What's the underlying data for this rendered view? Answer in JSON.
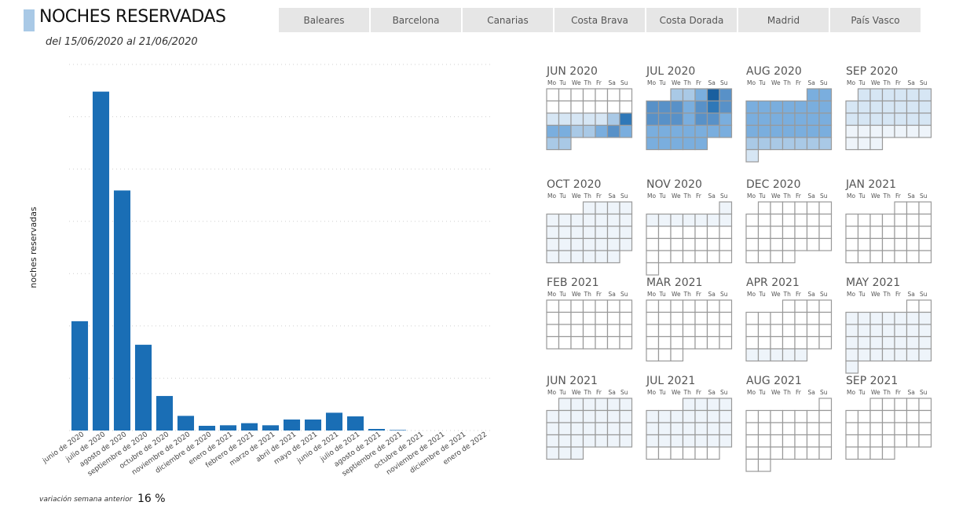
{
  "header": {
    "title": "NOCHES RESERVADAS",
    "subtitle": "del 15/06/2020 al 21/06/2020"
  },
  "tabs": [
    "Baleares",
    "Barcelona",
    "Canarias",
    "Costa Brava",
    "Costa Dorada",
    "Madrid",
    "País Vasco"
  ],
  "colors": {
    "bar": "#1a6eb5",
    "title_accent": "#a9c9e6",
    "tab_bg": "#e6e6e6",
    "cell_border": "#999999",
    "heat_scale": [
      "#ffffff",
      "#eef4fa",
      "#d6e6f4",
      "#a9c9e6",
      "#7aaede",
      "#5891c8",
      "#2f78b8",
      "#1a5f9f"
    ]
  },
  "chart_data": {
    "type": "bar",
    "ylabel": "noches reservadas",
    "categories": [
      "junio de 2020",
      "julio de 2020",
      "agosto de 2020",
      "septiembre de 2020",
      "octubre de 2020",
      "noviembre de 2020",
      "diciembre de 2020",
      "enero de 2021",
      "febrero de 2021",
      "marzo de 2021",
      "abril de 2021",
      "mayo de 2021",
      "junio de 2021",
      "julio de 2021",
      "agosto de 2021",
      "septiembre de 2021",
      "octubre de 2021",
      "noviembre de 2021",
      "diciembre de 2021",
      "enero de 2022"
    ],
    "values": [
      2090,
      6480,
      4590,
      1640,
      660,
      280,
      90,
      100,
      140,
      100,
      210,
      210,
      340,
      270,
      30,
      10,
      0,
      0,
      0,
      0
    ],
    "ylim": [
      0,
      7000
    ],
    "grid": true
  },
  "calendar": {
    "day_headers": [
      "Mo",
      "Tu",
      "We",
      "Th",
      "Fr",
      "Sa",
      "Su"
    ],
    "months": [
      {
        "label": "JUN 2020",
        "start": 0,
        "days": 30,
        "levels": {
          "15": 2,
          "16": 2,
          "17": 2,
          "18": 2,
          "19": 2,
          "20": 3,
          "21": 6,
          "22": 4,
          "23": 4,
          "24": 3,
          "25": 3,
          "26": 4,
          "27": 5,
          "28": 4,
          "29": 3,
          "30": 3
        }
      },
      {
        "label": "JUL 2020",
        "start": 2,
        "days": 31,
        "levels": {
          "1": 3,
          "2": 3,
          "3": 4,
          "4": 7,
          "5": 5,
          "6": 5,
          "7": 5,
          "8": 5,
          "9": 4,
          "10": 5,
          "11": 6,
          "12": 5,
          "13": 5,
          "14": 5,
          "15": 5,
          "16": 4,
          "17": 5,
          "18": 5,
          "19": 4,
          "20": 4,
          "21": 4,
          "22": 4,
          "23": 4,
          "24": 4,
          "25": 4,
          "26": 4,
          "27": 4,
          "28": 4,
          "29": 4,
          "30": 4,
          "31": 4
        }
      },
      {
        "label": "AUG 2020",
        "start": 5,
        "days": 31,
        "levels": {
          "1": 4,
          "2": 4,
          "3": 4,
          "4": 4,
          "5": 4,
          "6": 4,
          "7": 4,
          "8": 4,
          "9": 4,
          "10": 4,
          "11": 4,
          "12": 4,
          "13": 4,
          "14": 4,
          "15": 4,
          "16": 4,
          "17": 4,
          "18": 4,
          "19": 4,
          "20": 4,
          "21": 4,
          "22": 4,
          "23": 4,
          "24": 3,
          "25": 3,
          "26": 3,
          "27": 3,
          "28": 3,
          "29": 3,
          "30": 3,
          "31": 2
        }
      },
      {
        "label": "SEP 2020",
        "start": 1,
        "days": 30,
        "levels": {
          "1": 2,
          "2": 2,
          "3": 2,
          "4": 2,
          "5": 2,
          "6": 2,
          "7": 2,
          "8": 2,
          "9": 2,
          "10": 2,
          "11": 2,
          "12": 2,
          "13": 2,
          "14": 2,
          "15": 2,
          "16": 2,
          "17": 2,
          "18": 2,
          "19": 2,
          "20": 2,
          "21": 1,
          "22": 1,
          "23": 1,
          "24": 1,
          "25": 1,
          "26": 1,
          "27": 1,
          "28": 1,
          "29": 1,
          "30": 1
        }
      },
      {
        "label": "OCT 2020",
        "start": 3,
        "days": 31,
        "levels": {
          "1": 1,
          "2": 1,
          "3": 1,
          "4": 1,
          "5": 1,
          "6": 1,
          "7": 1,
          "8": 1,
          "9": 1,
          "10": 1,
          "11": 1,
          "12": 1,
          "13": 1,
          "14": 1,
          "15": 1,
          "16": 1,
          "17": 1,
          "18": 1,
          "19": 1,
          "20": 1,
          "21": 1,
          "22": 1,
          "23": 1,
          "24": 1,
          "25": 1,
          "26": 1,
          "27": 1,
          "28": 1,
          "29": 1,
          "30": 1,
          "31": 1
        }
      },
      {
        "label": "NOV 2020",
        "start": 6,
        "days": 30,
        "levels": {
          "1": 1,
          "2": 1,
          "3": 1,
          "4": 1,
          "5": 1,
          "6": 1,
          "7": 1,
          "8": 1
        }
      },
      {
        "label": "DEC 2020",
        "start": 1,
        "days": 31,
        "levels": {}
      },
      {
        "label": "JAN 2021",
        "start": 4,
        "days": 31,
        "levels": {}
      },
      {
        "label": "FEB 2021",
        "start": 0,
        "days": 28,
        "levels": {}
      },
      {
        "label": "MAR 2021",
        "start": 0,
        "days": 31,
        "levels": {}
      },
      {
        "label": "APR 2021",
        "start": 3,
        "days": 30,
        "levels": {
          "26": 1,
          "27": 1,
          "28": 1,
          "29": 1,
          "30": 1
        }
      },
      {
        "label": "MAY 2021",
        "start": 5,
        "days": 31,
        "levels": {
          "3": 1,
          "4": 1,
          "5": 1,
          "6": 1,
          "7": 1,
          "8": 1,
          "9": 1,
          "10": 1,
          "11": 1,
          "12": 1,
          "13": 1,
          "14": 1,
          "15": 1,
          "16": 1,
          "17": 1,
          "18": 1,
          "19": 1,
          "20": 1,
          "21": 1,
          "22": 1,
          "23": 1,
          "24": 1,
          "25": 1,
          "26": 1,
          "27": 1,
          "28": 1,
          "29": 1,
          "30": 1,
          "31": 1
        }
      },
      {
        "label": "JUN 2021",
        "start": 1,
        "days": 30,
        "levels": {
          "1": 1,
          "2": 1,
          "3": 1,
          "4": 1,
          "5": 1,
          "6": 1,
          "7": 1,
          "8": 1,
          "9": 1,
          "10": 1,
          "11": 1,
          "12": 1,
          "13": 1,
          "14": 1,
          "15": 1,
          "16": 1,
          "17": 1,
          "18": 1,
          "19": 1,
          "20": 1,
          "21": 1,
          "22": 1,
          "23": 1,
          "24": 1,
          "25": 1,
          "26": 1,
          "27": 1,
          "28": 1,
          "29": 1,
          "30": 1
        }
      },
      {
        "label": "JUL 2021",
        "start": 3,
        "days": 31,
        "levels": {
          "1": 1,
          "2": 1,
          "3": 1,
          "4": 1,
          "5": 1,
          "6": 1,
          "7": 1,
          "8": 1,
          "9": 1,
          "10": 1,
          "11": 1,
          "12": 1,
          "13": 1,
          "14": 1,
          "15": 1,
          "16": 1,
          "17": 1,
          "18": 1,
          "19": 1,
          "20": 1,
          "21": 1,
          "22": 1,
          "23": 1,
          "24": 1,
          "25": 1
        }
      },
      {
        "label": "AUG 2021",
        "start": 6,
        "days": 31,
        "levels": {}
      },
      {
        "label": "SEP 2021",
        "start": 2,
        "days": 30,
        "levels": {}
      }
    ]
  },
  "footer": {
    "label": "variación semana anterior",
    "value": "16 %"
  }
}
